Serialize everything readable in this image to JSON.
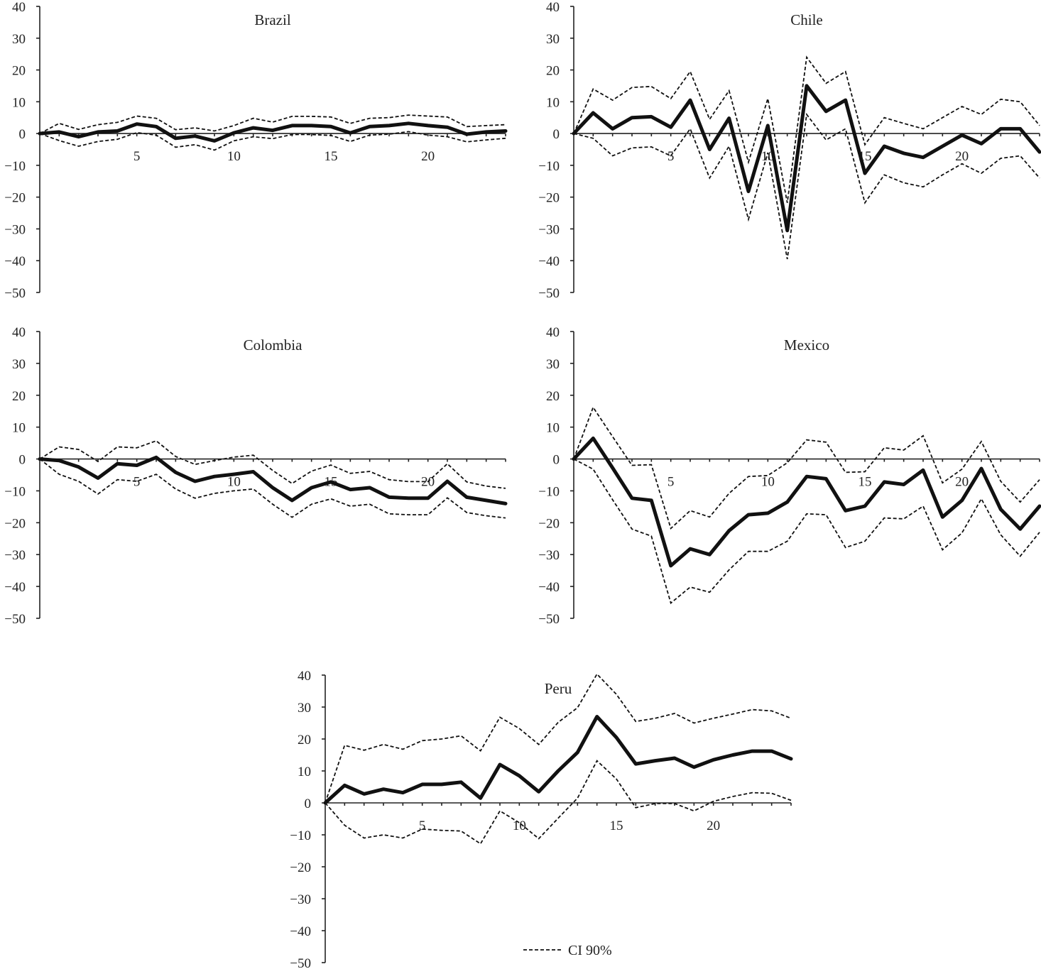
{
  "chart_data": [
    {
      "type": "line",
      "title": "Brazil",
      "ylim": [
        -50,
        40
      ],
      "yticks": [
        40,
        30,
        20,
        10,
        0,
        -10,
        -20,
        -30,
        -40,
        -50
      ],
      "xlim": [
        0,
        24
      ],
      "xticks": [
        5,
        10,
        15,
        20
      ],
      "x": [
        0,
        1,
        2,
        3,
        4,
        5,
        6,
        7,
        8,
        9,
        10,
        11,
        12,
        13,
        14,
        15,
        16,
        17,
        18,
        19,
        20,
        21,
        22,
        23,
        24
      ],
      "series": [
        {
          "name": "",
          "style": "solid",
          "values": [
            0,
            0.5,
            -1,
            0.5,
            0.8,
            3,
            2.2,
            -1.5,
            -0.8,
            -2.3,
            0.2,
            1.8,
            1,
            2.5,
            2.5,
            2.2,
            0.2,
            2.2,
            2.5,
            3.2,
            2.5,
            2,
            -0.2,
            0.5,
            0.8
          ]
        },
        {
          "name": "CI 90%",
          "style": "dashed",
          "values": [
            0,
            3.2,
            1.3,
            2.8,
            3.5,
            5.5,
            4.8,
            1.2,
            1.8,
            0.8,
            2.5,
            4.8,
            3.6,
            5.4,
            5.4,
            5.2,
            3.2,
            4.8,
            5,
            5.8,
            5.5,
            5.2,
            2.2,
            2.5,
            2.8
          ]
        },
        {
          "name": "CI 90%",
          "style": "dashed",
          "values": [
            0,
            -2.2,
            -4,
            -2.5,
            -1.8,
            0.3,
            -0.5,
            -4.3,
            -3.5,
            -5.2,
            -2.3,
            -1,
            -1.6,
            -0.3,
            -0.3,
            -0.6,
            -2.5,
            -0.5,
            -0.2,
            0.6,
            -0.5,
            -1,
            -2.6,
            -2,
            -1.5
          ]
        }
      ]
    },
    {
      "type": "line",
      "title": "Chile",
      "ylim": [
        -50,
        40
      ],
      "yticks": [
        40,
        30,
        20,
        10,
        0,
        -10,
        -20,
        -30,
        -40,
        -50
      ],
      "xlim": [
        0,
        24
      ],
      "xticks": [
        5,
        10,
        15,
        20
      ],
      "x": [
        0,
        1,
        2,
        3,
        4,
        5,
        6,
        7,
        8,
        9,
        10,
        11,
        12,
        13,
        14,
        15,
        16,
        17,
        18,
        19,
        20,
        21,
        22,
        23,
        24
      ],
      "series": [
        {
          "name": "",
          "style": "solid",
          "values": [
            0,
            6.5,
            1.5,
            5,
            5.3,
            2,
            10.5,
            -5,
            4.8,
            -18.2,
            2.5,
            -30.5,
            15,
            7,
            10.5,
            -12.5,
            -4,
            -6.2,
            -7.5,
            -4,
            -0.5,
            -3.2,
            1.5,
            1.5,
            -5.8
          ]
        },
        {
          "name": "CI 90%",
          "style": "dashed",
          "values": [
            0,
            14,
            10.5,
            14.5,
            14.8,
            11,
            19.5,
            4.5,
            13.5,
            -9,
            11,
            -21.8,
            24,
            15.8,
            19.5,
            -3.5,
            5,
            3.2,
            1.5,
            5,
            8.5,
            6,
            10.8,
            10,
            2.5
          ]
        },
        {
          "name": "CI 90%",
          "style": "dashed",
          "values": [
            0,
            -1.5,
            -7,
            -4.5,
            -4.2,
            -7,
            1.5,
            -14,
            -4,
            -27,
            -6,
            -39.5,
            6,
            -2,
            1.5,
            -21.8,
            -13,
            -15.5,
            -16.8,
            -13,
            -9.5,
            -12.5,
            -7.8,
            -7,
            -14
          ]
        }
      ]
    },
    {
      "type": "line",
      "title": "Colombia",
      "ylim": [
        -50,
        40
      ],
      "yticks": [
        40,
        30,
        20,
        10,
        0,
        -10,
        -20,
        -30,
        -40,
        -50
      ],
      "xlim": [
        0,
        24
      ],
      "xticks": [
        5,
        10,
        15,
        20
      ],
      "x": [
        0,
        1,
        2,
        3,
        4,
        5,
        6,
        7,
        8,
        9,
        10,
        11,
        12,
        13,
        14,
        15,
        16,
        17,
        18,
        19,
        20,
        21,
        22,
        23,
        24
      ],
      "series": [
        {
          "name": "",
          "style": "solid",
          "values": [
            0,
            -0.5,
            -2.5,
            -6,
            -1.5,
            -2,
            0.5,
            -4.2,
            -7,
            -5.5,
            -4.8,
            -4,
            -9,
            -13,
            -9,
            -7.2,
            -9.6,
            -9,
            -12,
            -12.3,
            -12.3,
            -7,
            -12,
            -13,
            -14
          ]
        },
        {
          "name": "CI 90%",
          "style": "dashed",
          "values": [
            0,
            3.8,
            3,
            -0.8,
            3.8,
            3.5,
            5.7,
            0.8,
            -1.7,
            -0.5,
            0.6,
            1.2,
            -3.6,
            -7.7,
            -3.8,
            -1.9,
            -4.5,
            -3.9,
            -6.5,
            -7.1,
            -7.1,
            -1.5,
            -7.2,
            -8.5,
            -9.2
          ]
        },
        {
          "name": "CI 90%",
          "style": "dashed",
          "values": [
            0,
            -4.8,
            -7,
            -11,
            -6.5,
            -7,
            -4.8,
            -9.4,
            -12.3,
            -10.8,
            -10,
            -9.4,
            -14.2,
            -18.3,
            -14.2,
            -12.5,
            -14.8,
            -14.2,
            -17.2,
            -17.5,
            -17.5,
            -12.2,
            -16.8,
            -17.8,
            -18.5
          ]
        }
      ]
    },
    {
      "type": "line",
      "title": "Mexico",
      "ylim": [
        -50,
        40
      ],
      "yticks": [
        40,
        30,
        20,
        10,
        0,
        -10,
        -20,
        -30,
        -40,
        -50
      ],
      "xlim": [
        0,
        24
      ],
      "xticks": [
        5,
        10,
        15,
        20
      ],
      "x": [
        0,
        1,
        2,
        3,
        4,
        5,
        6,
        7,
        8,
        9,
        10,
        11,
        12,
        13,
        14,
        15,
        16,
        17,
        18,
        19,
        20,
        21,
        22,
        23,
        24
      ],
      "series": [
        {
          "name": "",
          "style": "solid",
          "values": [
            0,
            6.5,
            -2.8,
            -12.3,
            -13,
            -33.5,
            -28.2,
            -30,
            -22.5,
            -17.5,
            -17,
            -13.5,
            -5.5,
            -6.2,
            -16.2,
            -14.8,
            -7.2,
            -8,
            -3.5,
            -18.2,
            -13,
            -3,
            -15.8,
            -22,
            -14.8
          ]
        },
        {
          "name": "CI 90%",
          "style": "dashed",
          "values": [
            0,
            16.2,
            7,
            -2,
            -1.8,
            -21.8,
            -16.2,
            -18.2,
            -10.8,
            -5.5,
            -5.2,
            -1.2,
            6,
            5.3,
            -4.2,
            -4,
            3.5,
            2.8,
            7.3,
            -7.5,
            -3.2,
            5.5,
            -7,
            -13.5,
            -6.5
          ]
        },
        {
          "name": "CI 90%",
          "style": "dashed",
          "values": [
            0,
            -3.2,
            -12.8,
            -22,
            -24.2,
            -45.2,
            -40.2,
            -41.8,
            -34.8,
            -29,
            -29,
            -25.8,
            -17.2,
            -17.5,
            -27.8,
            -25.8,
            -18.5,
            -18.8,
            -14.8,
            -28.5,
            -23.2,
            -12.5,
            -23.8,
            -30.5,
            -23
          ]
        }
      ]
    },
    {
      "type": "line",
      "title": "Peru",
      "ylim": [
        -50,
        40
      ],
      "yticks": [
        40,
        30,
        20,
        10,
        0,
        -10,
        -20,
        -30,
        -40,
        -50
      ],
      "xlim": [
        0,
        24
      ],
      "xticks": [
        5,
        10,
        15,
        20
      ],
      "x": [
        0,
        1,
        2,
        3,
        4,
        5,
        6,
        7,
        8,
        9,
        10,
        11,
        12,
        13,
        14,
        15,
        16,
        17,
        18,
        19,
        20,
        21,
        22,
        23,
        24
      ],
      "series": [
        {
          "name": "",
          "style": "solid",
          "values": [
            0,
            5.5,
            2.8,
            4.3,
            3.2,
            5.8,
            5.8,
            6.5,
            1.5,
            12,
            8.5,
            3.5,
            10,
            15.8,
            27,
            20.5,
            12.2,
            13.2,
            14,
            11.2,
            13.5,
            15,
            16.2,
            16.2,
            13.8
          ]
        },
        {
          "name": "CI 90%",
          "style": "dashed",
          "values": [
            0,
            18,
            16.5,
            18.3,
            16.8,
            19.5,
            20,
            21,
            16.3,
            26.8,
            23.3,
            18.3,
            25.2,
            29.8,
            40.3,
            34,
            25.5,
            26.5,
            28,
            25,
            26.5,
            27.8,
            29.2,
            28.8,
            26.5
          ]
        },
        {
          "name": "CI 90%",
          "style": "dashed",
          "values": [
            0,
            -7,
            -11,
            -10,
            -11,
            -8.2,
            -8.6,
            -8.8,
            -12.8,
            -2.5,
            -6.2,
            -11.2,
            -4.8,
            1.5,
            13.2,
            7.5,
            -1.5,
            -0.2,
            -0.2,
            -2.5,
            0.5,
            2,
            3.2,
            3,
            0.8
          ]
        }
      ]
    }
  ],
  "legend": {
    "label": "CI 90%",
    "placement": "bottom-center"
  }
}
